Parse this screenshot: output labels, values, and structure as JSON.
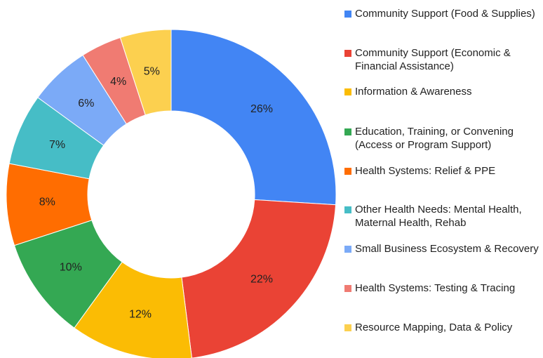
{
  "chart_data": {
    "type": "donut",
    "categories": [
      "Community Support (Food & Supplies)",
      "Community Support (Economic & Financial Assistance)",
      "Information & Awareness",
      "Education, Training, or Convening (Access or Program Support)",
      "Health Systems: Relief & PPE",
      "Other Health Needs: Mental Health, Maternal Health, Rehab",
      "Small Business Ecosystem & Recovery",
      "Health Systems: Testing & Tracing",
      "Resource Mapping, Data & Policy"
    ],
    "values": [
      26,
      22,
      12,
      10,
      8,
      7,
      6,
      4,
      5
    ],
    "value_labels": [
      "26%",
      "22%",
      "12%",
      "10%",
      "8%",
      "7%",
      "6%",
      "4%",
      "5%"
    ],
    "colors": [
      "#4285f4",
      "#ea4335",
      "#fbbc04",
      "#34a853",
      "#ff6d01",
      "#46bdc6",
      "#7baaf7",
      "#f07b72",
      "#fcd04f"
    ],
    "legend": "right"
  }
}
